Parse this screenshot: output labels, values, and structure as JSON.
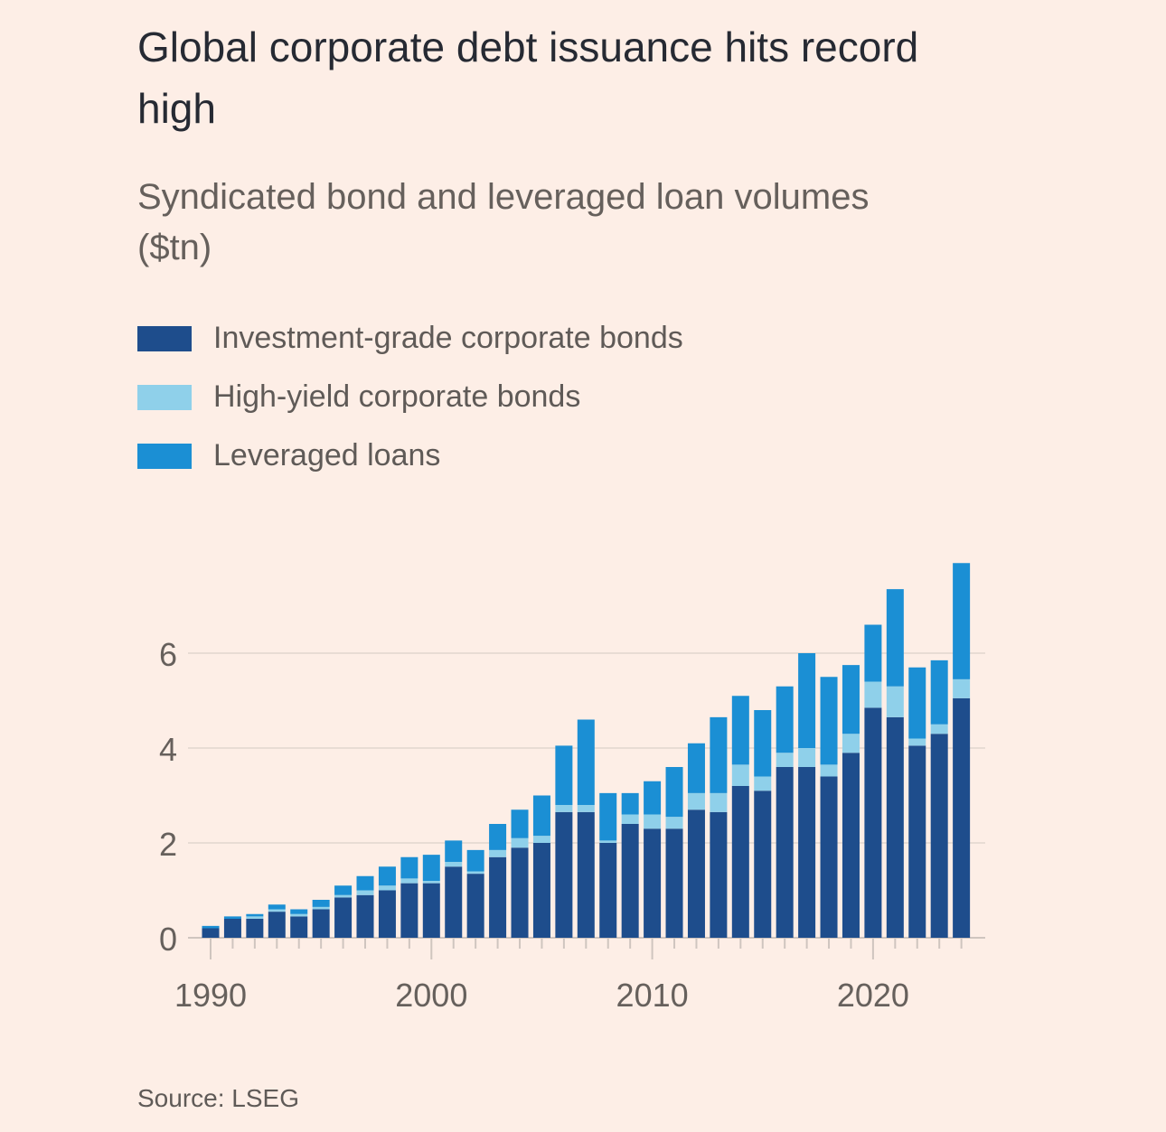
{
  "header": {
    "title": "Global corporate debt issuance hits record high",
    "subtitle": "Syndicated bond and leveraged loan volumes ($tn)"
  },
  "footer": {
    "source": "Source: LSEG"
  },
  "colors": {
    "background": "#fdeee6",
    "investment_grade": "#1e4d8c",
    "high_yield": "#8fd0ea",
    "leveraged_loans": "#1b8fd4",
    "grid": "#e8dcd4",
    "axis_text": "#66605c"
  },
  "chart_data": {
    "type": "bar",
    "stacked": true,
    "title": "Global corporate debt issuance hits record high",
    "subtitle": "Syndicated bond and leveraged loan volumes ($tn)",
    "xlabel": "",
    "ylabel": "",
    "ylim": [
      0,
      8
    ],
    "yticks": [
      0,
      2,
      4,
      6
    ],
    "xticks": [
      1990,
      2000,
      2010,
      2020
    ],
    "grid": true,
    "legend_position": "top-left",
    "categories": [
      1990,
      1991,
      1992,
      1993,
      1994,
      1995,
      1996,
      1997,
      1998,
      1999,
      2000,
      2001,
      2002,
      2003,
      2004,
      2005,
      2006,
      2007,
      2008,
      2009,
      2010,
      2011,
      2012,
      2013,
      2014,
      2015,
      2016,
      2017,
      2018,
      2019,
      2020,
      2021,
      2022,
      2023,
      2024
    ],
    "series": [
      {
        "name": "Investment-grade corporate bonds",
        "color": "#1e4d8c",
        "values": [
          0.2,
          0.4,
          0.4,
          0.55,
          0.45,
          0.6,
          0.85,
          0.9,
          1.0,
          1.15,
          1.15,
          1.5,
          1.35,
          1.7,
          1.9,
          2.0,
          2.65,
          2.65,
          2.0,
          2.4,
          2.3,
          2.3,
          2.7,
          2.65,
          3.2,
          3.1,
          3.6,
          3.6,
          3.4,
          3.9,
          4.85,
          4.65,
          4.05,
          4.3,
          5.05
        ]
      },
      {
        "name": "High-yield corporate bonds",
        "color": "#8fd0ea",
        "values": [
          0.0,
          0.0,
          0.05,
          0.05,
          0.05,
          0.05,
          0.05,
          0.1,
          0.1,
          0.1,
          0.05,
          0.1,
          0.05,
          0.15,
          0.2,
          0.15,
          0.15,
          0.15,
          0.05,
          0.2,
          0.3,
          0.25,
          0.35,
          0.4,
          0.45,
          0.3,
          0.3,
          0.4,
          0.25,
          0.4,
          0.55,
          0.65,
          0.15,
          0.2,
          0.4
        ]
      },
      {
        "name": "Leveraged loans",
        "color": "#1b8fd4",
        "values": [
          0.05,
          0.05,
          0.05,
          0.1,
          0.1,
          0.15,
          0.2,
          0.3,
          0.4,
          0.45,
          0.55,
          0.45,
          0.45,
          0.55,
          0.6,
          0.85,
          1.25,
          1.8,
          1.0,
          0.45,
          0.7,
          1.05,
          1.05,
          1.6,
          1.45,
          1.4,
          1.4,
          2.0,
          1.85,
          1.45,
          1.2,
          2.05,
          1.5,
          1.35,
          2.45
        ]
      }
    ]
  }
}
